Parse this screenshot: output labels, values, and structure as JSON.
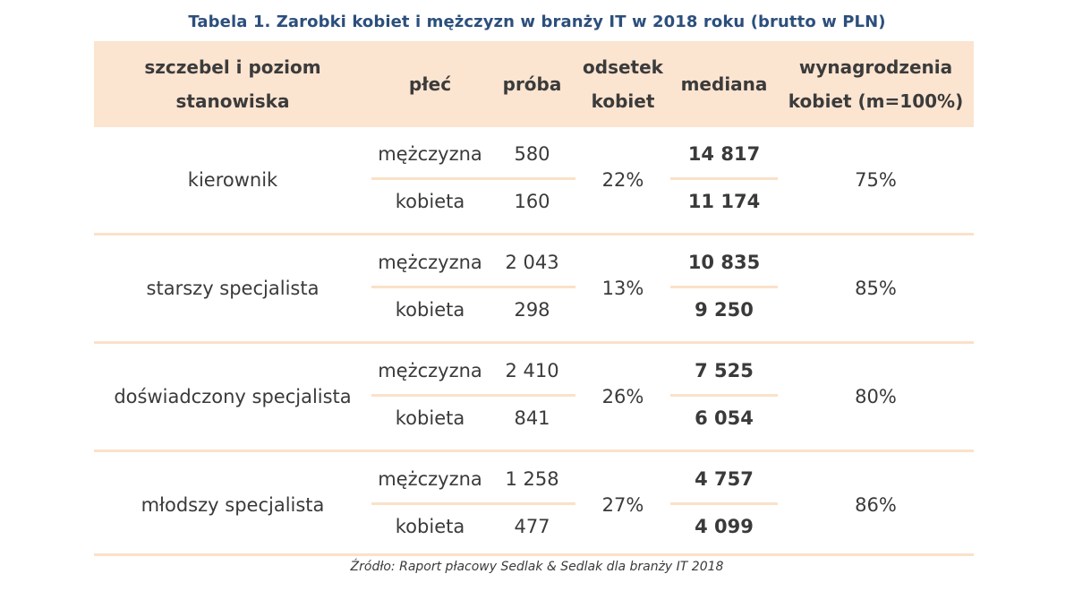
{
  "title": "Tabela 1. Zarobki kobiet i mężczyzn w branży IT w 2018 roku (brutto w PLN)",
  "headers": {
    "level_line1": "szczebel i poziom",
    "level_line2": "stanowiska",
    "gender": "płeć",
    "sample": "próba",
    "women_share_line1": "odsetek",
    "women_share_line2": "kobiet",
    "median": "mediana",
    "ratio_line1": "wynagrodzenia",
    "ratio_line2": "kobiet (m=100%)"
  },
  "rows": [
    {
      "level": "kierownik",
      "male_label": "mężczyzna",
      "male_sample": "580",
      "female_label": "kobieta",
      "female_sample": "160",
      "women_share": "22%",
      "male_median": "14 817",
      "female_median": "11 174",
      "ratio": "75%"
    },
    {
      "level": "starszy specjalista",
      "male_label": "mężczyzna",
      "male_sample": "2 043",
      "female_label": "kobieta",
      "female_sample": "298",
      "women_share": "13%",
      "male_median": "10 835",
      "female_median": "9 250",
      "ratio": "85%"
    },
    {
      "level": "doświadczony specjalista",
      "male_label": "mężczyzna",
      "male_sample": "2 410",
      "female_label": "kobieta",
      "female_sample": "841",
      "women_share": "26%",
      "male_median": "7 525",
      "female_median": "6 054",
      "ratio": "80%"
    },
    {
      "level": "młodszy specjalista",
      "male_label": "mężczyzna",
      "male_sample": "1 258",
      "female_label": "kobieta",
      "female_sample": "477",
      "women_share": "27%",
      "male_median": "4 757",
      "female_median": "4 099",
      "ratio": "86%"
    }
  ],
  "source": "Źródło: Raport płacowy Sedlak & Sedlak dla branży IT 2018",
  "colors": {
    "header_bg": "#fbe4d0",
    "rule": "#fbe1c9",
    "title": "#2c4f7c"
  }
}
